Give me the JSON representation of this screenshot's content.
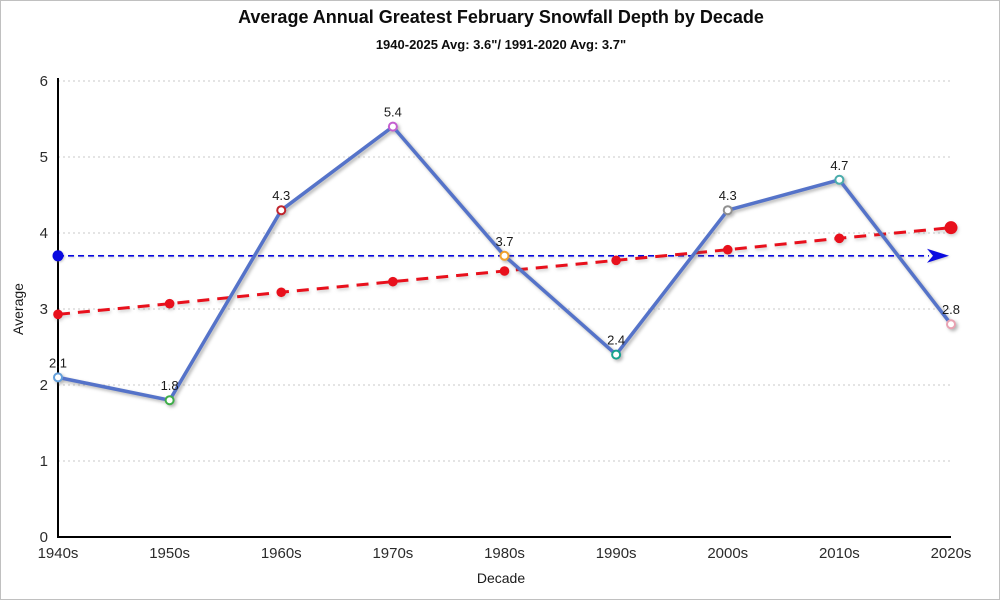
{
  "chart_data": {
    "type": "line",
    "title": "Average Annual Greatest February Snowfall Depth by Decade",
    "subtitle": "1940-2025 Avg: 3.6\"/ 1991-2020 Avg: 3.7\"",
    "xlabel": "Decade",
    "ylabel": "Average",
    "categories": [
      "1940s",
      "1950s",
      "1960s",
      "1970s",
      "1980s",
      "1990s",
      "2000s",
      "2010s",
      "2020s"
    ],
    "ylim": [
      0,
      6
    ],
    "yticks": [
      0,
      1,
      2,
      3,
      4,
      5,
      6
    ],
    "grid": "horizontal-dotted",
    "grid_color": "#c9c9c9",
    "axis_color": "#000000",
    "tick_label_color": "#2b2b2b",
    "data_label_color": "#1a1a1a",
    "series": [
      {
        "name": "decade-average-snowfall",
        "type": "line-solid",
        "color": "#5573c9",
        "values": [
          2.1,
          1.8,
          4.3,
          5.4,
          3.7,
          2.4,
          4.3,
          4.7,
          2.8
        ],
        "data_labels": [
          "2.1",
          "1.8",
          "4.3",
          "5.4",
          "3.7",
          "2.4",
          "4.3",
          "4.7",
          "2.8"
        ],
        "marker": "hollow-circle",
        "marker_colors": [
          "#64a0dc",
          "#3fae49",
          "#c0242c",
          "#c45fd0",
          "#f0a22e",
          "#17a28e",
          "#909090",
          "#4aacab",
          "#e9a2b2"
        ]
      },
      {
        "name": "linear-trend",
        "type": "line-dashed",
        "color": "#e8101c",
        "values": [
          2.93,
          3.07,
          3.22,
          3.36,
          3.5,
          3.64,
          3.78,
          3.93,
          4.07
        ],
        "marker": "solid-circle",
        "end_marker_larger": true
      },
      {
        "name": "reference-1991-2020-average",
        "type": "horizontal-dashed-arrow",
        "color": "#0a0ae0",
        "value": 3.7,
        "start_marker": "solid-circle",
        "end_marker": "arrow-right"
      }
    ]
  }
}
